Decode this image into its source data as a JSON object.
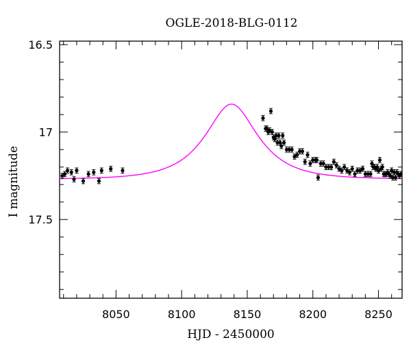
{
  "chart_data": {
    "type": "scatter",
    "title": "OGLE-2018-BLG-0112",
    "xlabel": "HJD - 2450000",
    "ylabel": "I magnitude",
    "xlim": [
      8007,
      8268
    ],
    "ylim": [
      17.95,
      16.48
    ],
    "y_inverted": true,
    "xticks": [
      8050,
      8100,
      8150,
      8200,
      8250
    ],
    "yticks": [
      16.5,
      17,
      17.5
    ],
    "ytick_labels": [
      "16.5",
      "17",
      "17.5"
    ],
    "grid": false,
    "colors": {
      "data": "#000000",
      "model": "#ff00ff",
      "frame": "#000000"
    },
    "series": [
      {
        "kind": "points_with_errorbars",
        "marker": "filled-circle",
        "x": [
          8009,
          8011,
          8013,
          8016,
          8018,
          8020,
          8025,
          8029,
          8033,
          8037,
          8039,
          8046,
          8055,
          8162,
          8164,
          8165,
          8166,
          8167,
          8168,
          8169,
          8170,
          8171,
          8172,
          8173,
          8174,
          8175,
          8176,
          8177,
          8178,
          8180,
          8182,
          8184,
          8186,
          8188,
          8190,
          8192,
          8194,
          8196,
          8198,
          8200,
          8202,
          8203,
          8204,
          8206,
          8208,
          8210,
          8212,
          8214,
          8216,
          8218,
          8220,
          8222,
          8224,
          8226,
          8228,
          8230,
          8232,
          8234,
          8236,
          8238,
          8240,
          8242,
          8244,
          8245,
          8246,
          8247,
          8248,
          8249,
          8250,
          8251,
          8252,
          8253,
          8254,
          8255,
          8256,
          8257,
          8258,
          8259,
          8260,
          8261,
          8262,
          8263,
          8264,
          8265,
          8266,
          8267
        ],
        "y": [
          17.25,
          17.24,
          17.22,
          17.23,
          17.27,
          17.22,
          17.28,
          17.24,
          17.23,
          17.28,
          17.22,
          17.21,
          17.22,
          16.92,
          16.98,
          16.98,
          17.0,
          16.99,
          16.88,
          17.0,
          17.03,
          17.04,
          17.02,
          17.06,
          17.02,
          17.06,
          17.08,
          17.02,
          17.06,
          17.1,
          17.1,
          17.1,
          17.14,
          17.13,
          17.11,
          17.11,
          17.17,
          17.13,
          17.18,
          17.16,
          17.16,
          17.16,
          17.26,
          17.18,
          17.18,
          17.2,
          17.2,
          17.2,
          17.17,
          17.19,
          17.21,
          17.22,
          17.2,
          17.22,
          17.23,
          17.21,
          17.24,
          17.22,
          17.22,
          17.21,
          17.24,
          17.24,
          17.24,
          17.18,
          17.2,
          17.2,
          17.21,
          17.2,
          17.22,
          17.16,
          17.21,
          17.2,
          17.24,
          17.24,
          17.24,
          17.23,
          17.24,
          17.25,
          17.22,
          17.26,
          17.23,
          17.26,
          17.23,
          17.24,
          17.25,
          17.24
        ],
        "err": 0.015
      },
      {
        "kind": "model_curve",
        "model": "microlensing-point-lens",
        "t0": 8138,
        "baseline_mag": 17.27,
        "peak_mag": 16.84,
        "x_range": [
          8007,
          8268
        ]
      }
    ]
  }
}
